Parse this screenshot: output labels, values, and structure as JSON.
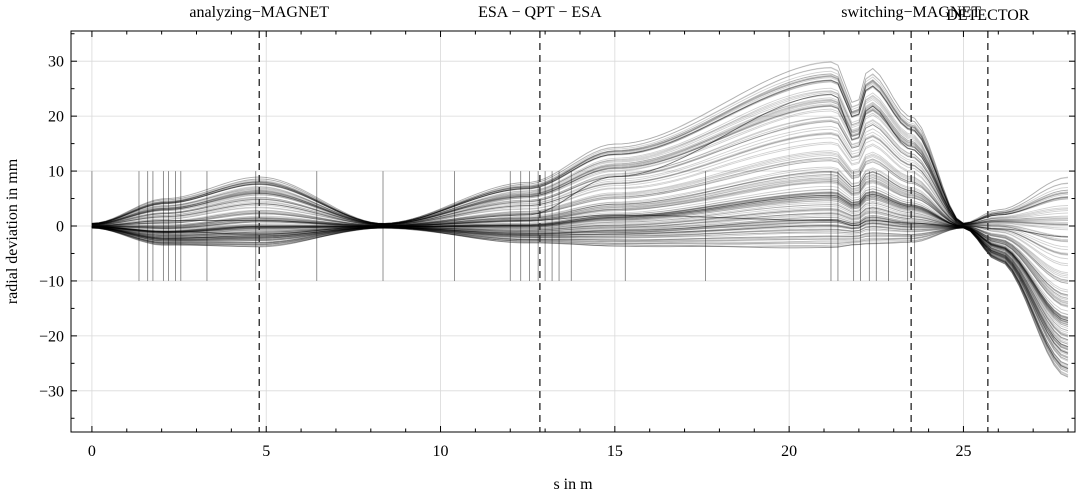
{
  "chart_data": {
    "type": "line",
    "title": "",
    "xlabel": "s in m",
    "ylabel": "radial deviation in mm",
    "xlim": [
      -0.6,
      28.2
    ],
    "ylim": [
      -37.5,
      35.5
    ],
    "xticks": [
      0,
      5,
      10,
      15,
      20,
      25
    ],
    "yticks": [
      -30,
      -20,
      -10,
      0,
      10,
      20,
      30
    ],
    "xtick_labels": [
      "0",
      "5",
      "10",
      "15",
      "20",
      "25"
    ],
    "ytick_labels": [
      "−30",
      "−20",
      "−10",
      "0",
      "10",
      "20",
      "30"
    ],
    "grid": true,
    "line_color": "#000000",
    "section_labels": [
      {
        "text": "analyzing−MAGNET",
        "x": 4.8
      },
      {
        "text": "ESA − QPT − ESA",
        "x": 12.85
      },
      {
        "text": "switching−MAGNET",
        "x": 23.5
      },
      {
        "text": "DETECTOR",
        "x": 25.7
      }
    ],
    "dashed_markers": [
      4.8,
      12.85,
      23.5,
      25.7
    ],
    "element_markers": [
      0.0,
      1.35,
      1.6,
      1.75,
      2.05,
      2.2,
      2.4,
      2.55,
      3.3,
      4.7,
      6.45,
      8.35,
      10.4,
      12.0,
      12.3,
      12.55,
      12.8,
      13.0,
      13.2,
      13.4,
      13.75,
      15.3,
      17.6,
      21.2,
      21.4,
      21.85,
      22.05,
      22.3,
      22.5,
      22.85,
      23.4,
      23.6
    ],
    "element_marker_range": [
      -10,
      10
    ],
    "envelope_mm": {
      "x": [
        0,
        2.1,
        4.8,
        8.35,
        12.5,
        15,
        21.3,
        21.9,
        22.3,
        23.5,
        25.0,
        26.0,
        28.0
      ],
      "upper": [
        0.5,
        5,
        9,
        0.5,
        8,
        15,
        30,
        22,
        29,
        20,
        0.5,
        3,
        9
      ],
      "lower": [
        -0.5,
        -5,
        -6,
        -0.5,
        -5,
        -7,
        -10,
        -8,
        -9,
        -7,
        -0.5,
        -8,
        -34
      ]
    },
    "series": [
      {
        "x": [
          0,
          2.1,
          4.8,
          8.35,
          12.5,
          15,
          21.3,
          21.9,
          22.3,
          23.5,
          25.0,
          26.0,
          28.0
        ],
        "y": [
          0,
          1,
          1,
          0,
          2,
          9,
          24,
          15,
          22,
          14,
          0,
          -6,
          -26
        ]
      },
      {
        "x": [
          0,
          2.1,
          4.8,
          8.35,
          12.5,
          15,
          21.3,
          21.9,
          22.3,
          23.5,
          25.0,
          26.0,
          28.0
        ],
        "y": [
          0,
          -1,
          -1.5,
          0,
          1,
          2,
          1,
          0,
          1,
          0.5,
          0,
          -0.5,
          -2
        ]
      }
    ]
  }
}
